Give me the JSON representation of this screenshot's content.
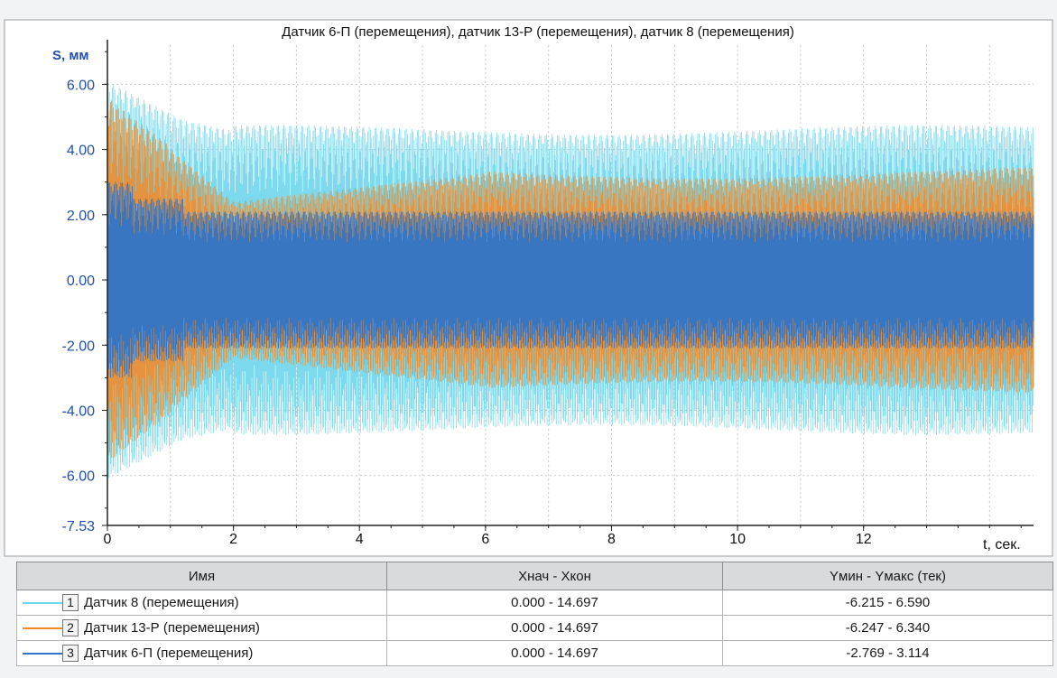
{
  "chart_data": {
    "type": "line",
    "title": "Датчик 6-П (перемещения), датчик 13-Р (перемещения), датчик 8 (перемещения)",
    "xlabel": "t, сек.",
    "ylabel": "S, мм",
    "xlim": [
      0,
      14.697
    ],
    "ylim": [
      -7.53,
      7.2
    ],
    "x_ticks": [
      0,
      2,
      4,
      6,
      8,
      10,
      12
    ],
    "x_tick_labels": [
      "0",
      "2",
      "4",
      "6",
      "8",
      "10",
      "12"
    ],
    "y_ticks": [
      6,
      4,
      2,
      0,
      -2,
      -4,
      -6,
      -7.53
    ],
    "y_tick_labels": [
      "6.00",
      "4.00",
      "2.00",
      "0.00",
      "-2.00",
      "-4.00",
      "-6.00",
      "-7.53"
    ],
    "grid": true,
    "series": [
      {
        "name": "Датчик 8 (перемещения)",
        "color": "#6fd6ec",
        "steady_amplitude": 4.6,
        "peak_min": -6.215,
        "peak_max": 6.59
      },
      {
        "name": "Датчик 13-Р (перемещения)",
        "color": "#f08c2c",
        "steady_amplitude": 3.3,
        "peak_min": -6.247,
        "peak_max": 6.34
      },
      {
        "name": "Датчик 6-П (перемещения)",
        "color": "#2f74c9",
        "steady_amplitude": 2.1,
        "peak_min": -2.769,
        "peak_max": 3.114
      }
    ]
  },
  "legend": {
    "headers": [
      "Имя",
      "Хнач - Хкон",
      "Yмин - Yмакс (тек)"
    ],
    "rows": [
      {
        "num": "1",
        "name": "Датчик 8 (перемещения)",
        "x_range": "0.000 - 14.697",
        "y_range": "-6.215 - 6.590",
        "color": "#6fd6ec"
      },
      {
        "num": "2",
        "name": "Датчик 13-Р (перемещения)",
        "x_range": "0.000 - 14.697",
        "y_range": "-6.247 - 6.340",
        "color": "#f08c2c"
      },
      {
        "num": "3",
        "name": "Датчик 6-П (перемещения)",
        "x_range": "0.000 - 14.697",
        "y_range": "-2.769 - 3.114",
        "color": "#2f74c9"
      }
    ]
  }
}
